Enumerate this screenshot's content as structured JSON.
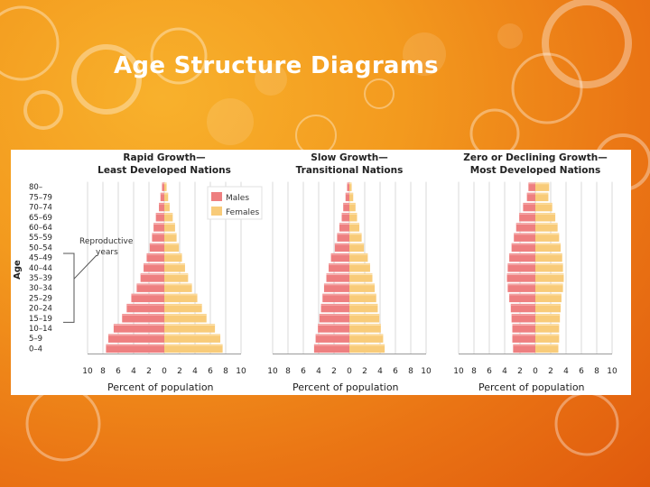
{
  "slide": {
    "title": "Age Structure Diagrams"
  },
  "colors": {
    "males": "#ee7f80",
    "females": "#f8cb79",
    "grid": "#d8d8d8",
    "background": "#ffffff"
  },
  "legend": {
    "males": "Males",
    "females": "Females"
  },
  "annotation": {
    "line1": "Reproductive",
    "line2": "years"
  },
  "axis_title_y": "Age",
  "chart_data": [
    {
      "type": "bar",
      "title_line1": "Rapid Growth—",
      "title_line2": "Least Developed Nations",
      "xlabel": "Percent of population",
      "ylabel": "Age",
      "xlim": [
        -10,
        10
      ],
      "x_ticks": [
        10,
        8,
        6,
        4,
        2,
        0,
        2,
        4,
        6,
        8,
        10
      ],
      "categories": [
        "0–4",
        "5–9",
        "10–14",
        "15–19",
        "20–24",
        "25–29",
        "30–34",
        "35–39",
        "40–44",
        "45–49",
        "50–54",
        "55–59",
        "60–64",
        "65–69",
        "70–74",
        "75–79",
        "80–"
      ],
      "series": [
        {
          "name": "Males",
          "values": [
            7.6,
            7.3,
            6.6,
            5.5,
            4.9,
            4.3,
            3.6,
            3.1,
            2.7,
            2.3,
            1.9,
            1.6,
            1.4,
            1.1,
            0.7,
            0.5,
            0.3
          ]
        },
        {
          "name": "Females",
          "values": [
            7.6,
            7.3,
            6.6,
            5.5,
            4.9,
            4.3,
            3.6,
            3.1,
            2.7,
            2.3,
            1.9,
            1.6,
            1.4,
            1.1,
            0.7,
            0.5,
            0.3
          ]
        }
      ]
    },
    {
      "type": "bar",
      "title_line1": "Slow Growth—",
      "title_line2": "Transitional Nations",
      "xlabel": "Percent of population",
      "ylabel": "Age",
      "xlim": [
        -10,
        10
      ],
      "x_ticks": [
        10,
        8,
        6,
        4,
        2,
        0,
        2,
        4,
        6,
        8,
        10
      ],
      "categories": [
        "0–4",
        "5–9",
        "10–14",
        "15–19",
        "20–24",
        "25–29",
        "30–34",
        "35–39",
        "40–44",
        "45–49",
        "50–54",
        "55–59",
        "60–64",
        "65–69",
        "70–74",
        "75–79",
        "80–"
      ],
      "series": [
        {
          "name": "Males",
          "values": [
            4.6,
            4.4,
            4.1,
            3.9,
            3.7,
            3.5,
            3.3,
            3.0,
            2.7,
            2.4,
            1.9,
            1.6,
            1.3,
            1.0,
            0.8,
            0.5,
            0.3
          ]
        },
        {
          "name": "Females",
          "values": [
            4.6,
            4.4,
            4.1,
            3.9,
            3.7,
            3.5,
            3.3,
            3.0,
            2.7,
            2.4,
            1.9,
            1.6,
            1.3,
            1.0,
            0.8,
            0.5,
            0.3
          ]
        }
      ]
    },
    {
      "type": "bar",
      "title_line1": "Zero or Declining Growth—",
      "title_line2": "Most Developed Nations",
      "xlabel": "Percent of population",
      "ylabel": "Age",
      "xlim": [
        -10,
        10
      ],
      "x_ticks": [
        10,
        8,
        6,
        4,
        2,
        0,
        2,
        4,
        6,
        8,
        10
      ],
      "categories": [
        "0–4",
        "5–9",
        "10–14",
        "15–19",
        "20–24",
        "25–29",
        "30–34",
        "35–39",
        "40–44",
        "45–49",
        "50–54",
        "55–59",
        "60–64",
        "65–69",
        "70–74",
        "75–79",
        "80–"
      ],
      "series": [
        {
          "name": "Males",
          "values": [
            2.9,
            3.0,
            3.0,
            3.1,
            3.2,
            3.4,
            3.6,
            3.7,
            3.6,
            3.4,
            3.1,
            2.8,
            2.5,
            2.1,
            1.6,
            1.1,
            0.9
          ]
        },
        {
          "name": "Females",
          "values": [
            3.0,
            3.1,
            3.1,
            3.2,
            3.3,
            3.4,
            3.6,
            3.7,
            3.6,
            3.5,
            3.3,
            3.1,
            2.9,
            2.6,
            2.2,
            1.7,
            1.8
          ]
        }
      ]
    }
  ]
}
